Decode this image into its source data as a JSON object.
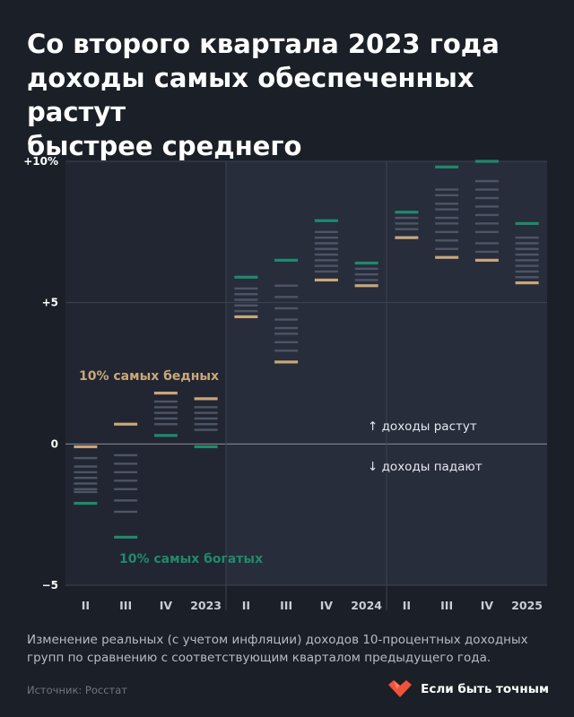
{
  "title": "Со второго квартала 2023 года\nдоходы самых обеспеченных растут\nбыстрее среднего",
  "caption": "Изменение реальных (с учетом инфляции) доходов 10-процентных доходных групп по сравнению с соответствующим кварталом предыдущего года.",
  "source": "Источник: Росстат",
  "brand": {
    "name": "Если быть точным",
    "icon": "heart-logo-icon"
  },
  "colors": {
    "background": "#1b1f27",
    "plot_background": "#212632",
    "shaded_background": "#272d3b",
    "poorest": "#c9a77a",
    "richest": "#1f8a6c",
    "middle": "#4d5566",
    "grid": "#3d4350",
    "zero_line": "#8a8f99"
  },
  "chart_data": {
    "type": "dot strip",
    "categories": [
      "II",
      "III",
      "IV",
      "2023",
      "II",
      "III",
      "IV",
      "2024",
      "II",
      "III",
      "IV",
      "2025"
    ],
    "y_ticks": [
      "+10%",
      "+5",
      "0",
      "−5"
    ],
    "ylim": [
      -5,
      10
    ],
    "grid": true,
    "shaded_range": [
      "2023",
      "2025"
    ],
    "series": [
      {
        "name": "10% самых бедных",
        "values": [
          -0.1,
          0.7,
          1.8,
          1.6,
          4.5,
          2.9,
          5.8,
          5.6,
          7.3,
          6.6,
          6.5,
          5.7
        ]
      },
      {
        "name": "10% самых богатых",
        "values": [
          -2.1,
          -3.3,
          0.3,
          -0.1,
          5.9,
          6.5,
          7.9,
          6.4,
          8.2,
          9.8,
          10.0,
          7.8
        ]
      },
      {
        "name": "",
        "values": [
          [
            -0.5,
            -0.8,
            -1.0,
            -1.2,
            -1.4,
            -1.6,
            -1.7
          ],
          [
            -0.4,
            -0.7,
            -1.0,
            -1.3,
            -1.6,
            -2.0,
            -2.4
          ],
          [
            1.5,
            1.3,
            1.1,
            0.9,
            0.7
          ],
          [
            1.3,
            1.1,
            0.9,
            0.7,
            0.5
          ],
          [
            5.5,
            5.3,
            5.1,
            4.9,
            4.7
          ],
          [
            5.6,
            5.2,
            4.8,
            4.4,
            4.1,
            3.9,
            3.6,
            3.3
          ],
          [
            7.5,
            7.3,
            7.1,
            6.9,
            6.7,
            6.5,
            6.3,
            6.1
          ],
          [
            6.2,
            6.0,
            5.8
          ],
          [
            8.0,
            7.8,
            7.6
          ],
          [
            9.0,
            8.8,
            8.5,
            8.3,
            8.0,
            7.8,
            7.5,
            7.2,
            6.9
          ],
          [
            9.3,
            9.0,
            8.7,
            8.4,
            8.1,
            7.8,
            7.5,
            7.1,
            6.8
          ],
          [
            7.3,
            7.1,
            6.9,
            6.7,
            6.5,
            6.3,
            6.1,
            5.9
          ]
        ]
      }
    ],
    "annotations": {
      "up": "↑ доходы растут",
      "down": "↓ доходы падают"
    }
  }
}
